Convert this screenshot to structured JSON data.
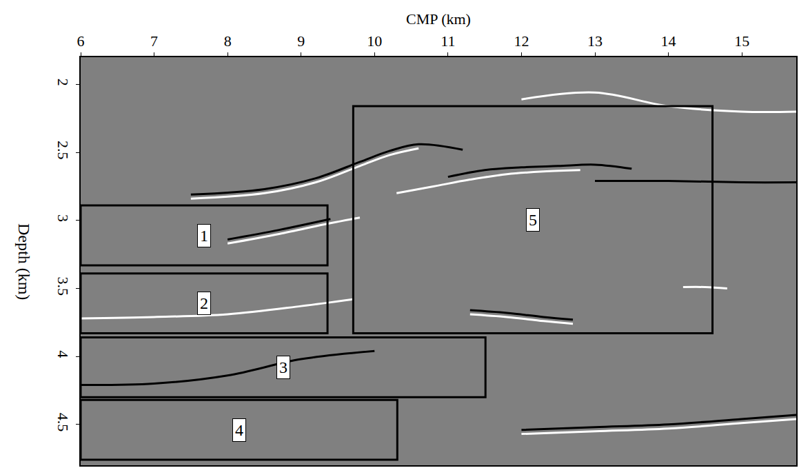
{
  "chart_data": {
    "type": "seismic",
    "xlabel": "CMP (km)",
    "ylabel": "Depth (km)",
    "xlim": [
      6,
      15.74
    ],
    "xticks": [
      6,
      7,
      8,
      9,
      10,
      11,
      12,
      13,
      14,
      15
    ],
    "ylim": [
      4.8,
      1.8
    ],
    "yticks": [
      2,
      2.5,
      3,
      3.5,
      4,
      4.5
    ],
    "color": "#808080",
    "boxes": [
      {
        "label": "1",
        "x": [
          6,
          9.36
        ],
        "y": [
          2.89,
          3.33
        ]
      },
      {
        "label": "2",
        "x": [
          6,
          9.36
        ],
        "y": [
          3.39,
          3.83
        ]
      },
      {
        "label": "3",
        "x": [
          6,
          11.51
        ],
        "y": [
          3.86,
          4.3
        ]
      },
      {
        "label": "4",
        "x": [
          6,
          10.31
        ],
        "y": [
          4.32,
          4.76
        ]
      },
      {
        "label": "5",
        "x": [
          9.71,
          14.6
        ],
        "y": [
          2.16,
          3.83
        ]
      }
    ],
    "series": [
      {
        "color": "#ffffff",
        "x": [
          7.5,
          8.5,
          9.2,
          9.8,
          10.2,
          10.6
        ],
        "values": [
          2.84,
          2.8,
          2.72,
          2.6,
          2.52,
          2.47
        ]
      },
      {
        "color": "#000000",
        "x": [
          7.5,
          8.5,
          9.2,
          9.8,
          10.2,
          10.6,
          11.2
        ],
        "values": [
          2.81,
          2.77,
          2.69,
          2.57,
          2.49,
          2.44,
          2.48
        ]
      },
      {
        "color": "#ffffff",
        "x": [
          10.3,
          10.8,
          11.3,
          11.8,
          12.3,
          12.8
        ],
        "values": [
          2.8,
          2.75,
          2.7,
          2.66,
          2.64,
          2.63
        ]
      },
      {
        "color": "#000000",
        "x": [
          11.0,
          11.5,
          12.0,
          12.5,
          13.0,
          13.5
        ],
        "values": [
          2.68,
          2.63,
          2.61,
          2.6,
          2.59,
          2.62
        ]
      },
      {
        "color": "#ffffff",
        "x": [
          8.0,
          8.7,
          9.4,
          9.8
        ],
        "values": [
          3.17,
          3.1,
          3.02,
          2.98
        ]
      },
      {
        "color": "#000000",
        "x": [
          8.0,
          8.7,
          9.4
        ],
        "values": [
          3.14,
          3.07,
          2.99
        ]
      },
      {
        "color": "#ffffff",
        "x": [
          6.0,
          7.0,
          8.0,
          9.0,
          9.7
        ],
        "values": [
          3.72,
          3.71,
          3.69,
          3.63,
          3.58
        ]
      },
      {
        "color": "#000000",
        "x": [
          6.0,
          7.0,
          8.0,
          9.0,
          10.0
        ],
        "values": [
          4.21,
          4.2,
          4.14,
          4.02,
          3.96
        ]
      },
      {
        "color": "#ffffff",
        "x": [
          11.3,
          11.8,
          12.3,
          12.7
        ],
        "values": [
          3.69,
          3.71,
          3.74,
          3.76
        ]
      },
      {
        "color": "#000000",
        "x": [
          11.3,
          11.8,
          12.3,
          12.7
        ],
        "values": [
          3.66,
          3.68,
          3.71,
          3.73
        ]
      },
      {
        "color": "#ffffff",
        "x": [
          14.2,
          14.5,
          14.8
        ],
        "values": [
          3.49,
          3.49,
          3.5
        ]
      },
      {
        "color": "#ffffff",
        "x": [
          12.0,
          13.0,
          14.0,
          15.0,
          15.74
        ],
        "values": [
          4.57,
          4.55,
          4.53,
          4.49,
          4.46
        ]
      },
      {
        "color": "#000000",
        "x": [
          12.0,
          13.0,
          14.0,
          15.0,
          15.74
        ],
        "values": [
          4.54,
          4.52,
          4.5,
          4.46,
          4.43
        ]
      },
      {
        "color": "#000000",
        "x": [
          13.0,
          14.0,
          15.0,
          15.74
        ],
        "values": [
          2.71,
          2.71,
          2.72,
          2.72
        ]
      },
      {
        "color": "#ffffff",
        "x": [
          12.0,
          13.0,
          14.0,
          15.0,
          15.74
        ],
        "values": [
          2.11,
          2.06,
          2.16,
          2.2,
          2.2
        ]
      }
    ]
  }
}
